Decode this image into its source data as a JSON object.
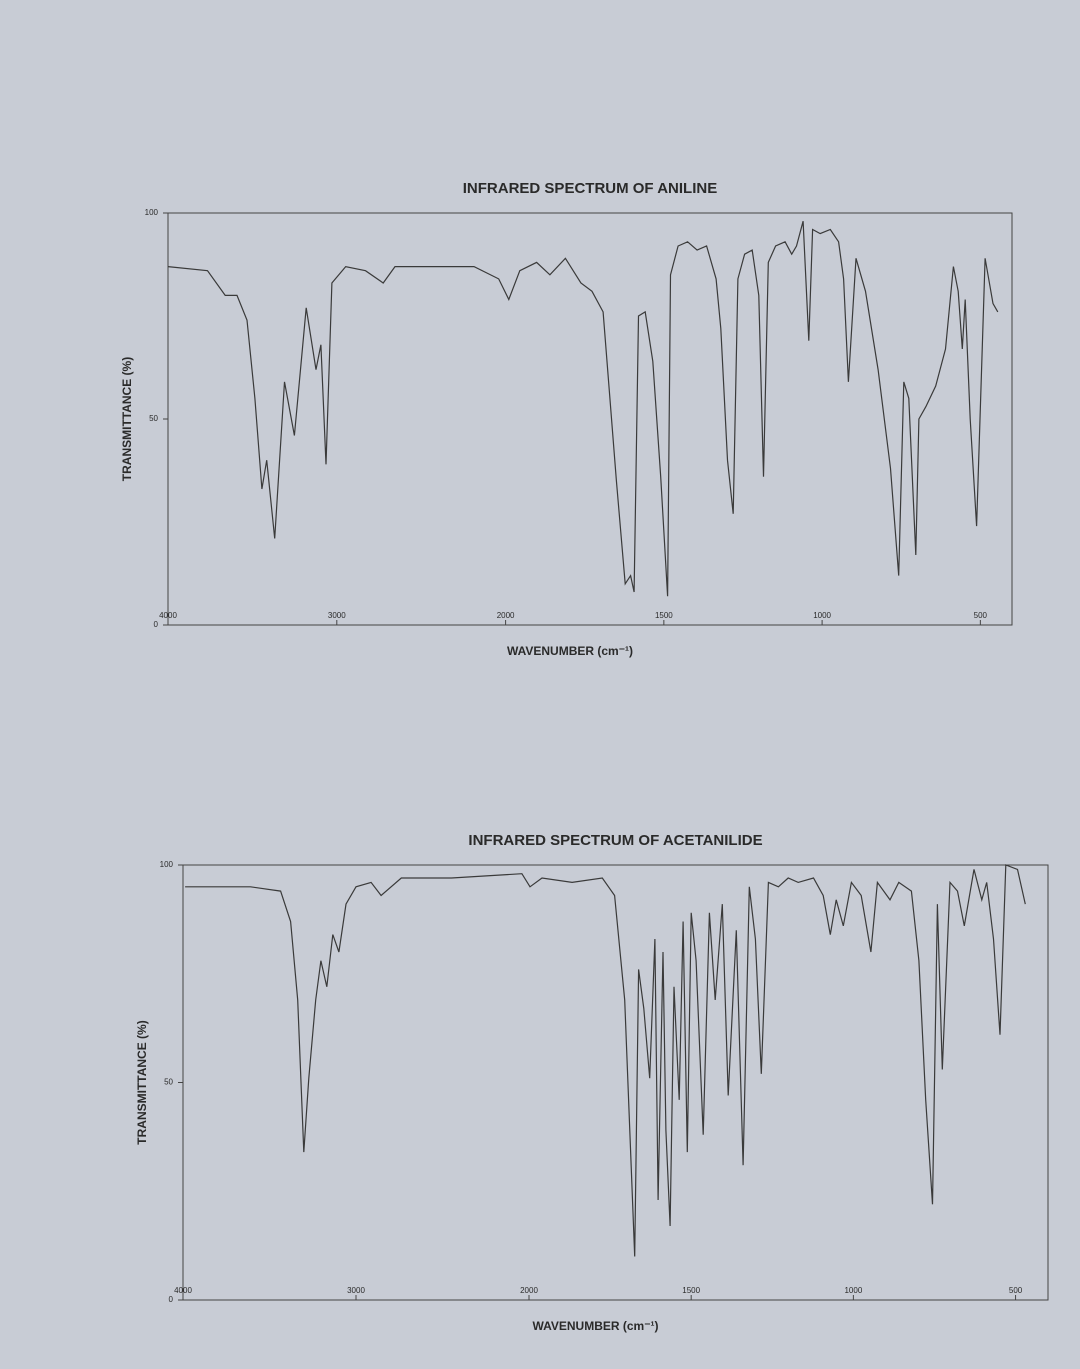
{
  "chart_data": [
    {
      "type": "line",
      "title": "INFRARED SPECTRUM OF ANILINE",
      "x_label": "WAVENUMBER (cm⁻¹)",
      "y_label": "TRANSMITTANCE (%)",
      "xlim": [
        4000,
        400
      ],
      "ylim": [
        0,
        100
      ],
      "xticks": [
        4000,
        3000,
        2000,
        1500,
        1000,
        500
      ],
      "yticks": [
        0,
        50,
        100
      ],
      "x_scale_break": 2000,
      "grid": false,
      "series": [
        {
          "color": "#3a3a3a",
          "x": [
            4000,
            3766,
            3661,
            3591,
            3532,
            3485,
            3444,
            3415,
            3368,
            3310,
            3251,
            3181,
            3123,
            3094,
            3064,
            3029,
            2947,
            2830,
            2725,
            2655,
            2480,
            2187,
            2041,
            1990,
            1955,
            1902,
            1860,
            1811,
            1762,
            1727,
            1692,
            1650,
            1622,
            1605,
            1594,
            1580,
            1559,
            1535,
            1510,
            1488,
            1479,
            1455,
            1425,
            1395,
            1365,
            1335,
            1320,
            1299,
            1281,
            1266,
            1245,
            1221,
            1200,
            1185,
            1170,
            1147,
            1117,
            1096,
            1081,
            1060,
            1042,
            1030,
            1006,
            974,
            948,
            932,
            917,
            893,
            863,
            823,
            784,
            758,
            742,
            726,
            704,
            694,
            672,
            641,
            610,
            585,
            570,
            557,
            548,
            532,
            512,
            485,
            460,
            445
          ],
          "values": [
            87,
            86,
            80,
            80,
            74,
            55,
            33,
            40,
            21,
            59,
            46,
            77,
            62,
            68,
            39,
            83,
            87,
            86,
            83,
            87,
            87,
            87,
            84,
            79,
            86,
            88,
            85,
            89,
            83,
            81,
            76,
            35,
            10,
            12,
            8,
            75,
            76,
            64,
            36,
            7,
            85,
            92,
            93,
            91,
            92,
            84,
            72,
            40,
            27,
            84,
            90,
            91,
            80,
            36,
            88,
            92,
            93,
            90,
            92,
            98,
            69,
            96,
            95,
            96,
            93,
            84,
            59,
            89,
            81,
            62,
            38,
            12,
            59,
            55,
            17,
            50,
            53,
            58,
            67,
            87,
            81,
            67,
            79,
            50,
            24,
            89,
            78,
            76
          ]
        }
      ]
    },
    {
      "type": "line",
      "title": "INFRARED SPECTRUM OF ACETANILIDE",
      "x_label": "WAVENUMBER (cm⁻¹)",
      "y_label": "TRANSMITTANCE (%)",
      "xlim": [
        4000,
        400
      ],
      "ylim": [
        0,
        100
      ],
      "xticks": [
        4000,
        3000,
        2000,
        1500,
        1000,
        500
      ],
      "yticks": [
        0,
        50,
        100
      ],
      "x_scale_break": 2000,
      "grid": false,
      "series": [
        {
          "color": "#3a3a3a",
          "x": [
            3988,
            3610,
            3436,
            3378,
            3337,
            3302,
            3273,
            3233,
            3203,
            3169,
            3134,
            3099,
            3058,
            3000,
            2913,
            2855,
            2738,
            2448,
            2041,
            1997,
            1960,
            1867,
            1774,
            1736,
            1705,
            1674,
            1662,
            1646,
            1628,
            1612,
            1602,
            1587,
            1578,
            1565,
            1553,
            1537,
            1525,
            1512,
            1500,
            1485,
            1463,
            1444,
            1426,
            1404,
            1386,
            1361,
            1340,
            1321,
            1302,
            1284,
            1262,
            1231,
            1201,
            1170,
            1123,
            1093,
            1071,
            1053,
            1031,
            1006,
            976,
            946,
            926,
            887,
            860,
            821,
            798,
            777,
            756,
            741,
            726,
            702,
            679,
            658,
            628,
            604,
            589,
            568,
            548,
            530,
            494,
            470
          ],
          "values": [
            95,
            95,
            94,
            87,
            69,
            34,
            51,
            69,
            78,
            72,
            84,
            80,
            91,
            95,
            96,
            93,
            97,
            97,
            98,
            95,
            97,
            96,
            97,
            93,
            69,
            10,
            76,
            67,
            51,
            83,
            23,
            80,
            39,
            17,
            72,
            46,
            87,
            34,
            89,
            78,
            38,
            89,
            69,
            91,
            47,
            85,
            31,
            95,
            83,
            52,
            96,
            95,
            97,
            96,
            97,
            93,
            84,
            92,
            86,
            96,
            93,
            80,
            96,
            92,
            96,
            94,
            78,
            46,
            22,
            91,
            53,
            96,
            94,
            86,
            99,
            92,
            96,
            83,
            61,
            100,
            99,
            91
          ]
        }
      ]
    }
  ]
}
